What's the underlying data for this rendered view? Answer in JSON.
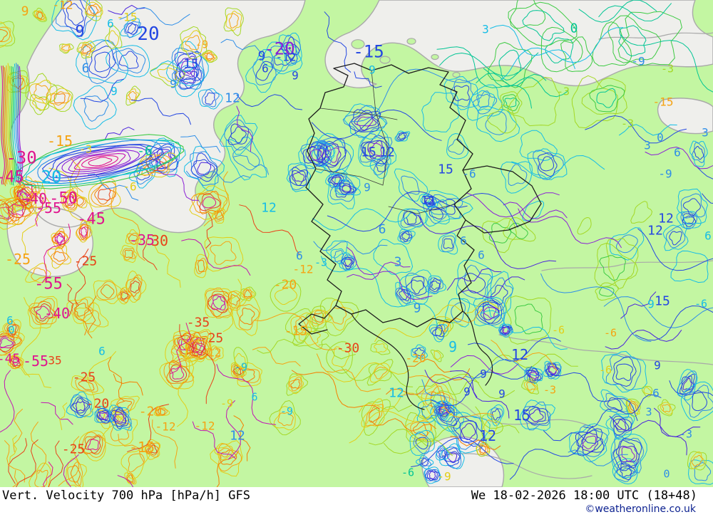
{
  "footer": {
    "title": "Vert. Velocity 700 hPa [hPa/h] GFS",
    "datetime": "We 18-02-2026 18:00 UTC (18+48)",
    "copyright": "©weatheronline.co.uk"
  },
  "map": {
    "colors": {
      "land": "#c3f6a2",
      "sea": "#efefec",
      "coastline": "#a9a9a9",
      "country_border": "#1c1c1c",
      "state_border": "#3a3a3a",
      "copyright_text": "#0a1f8f",
      "footer_bg": "#ffffff",
      "footer_text": "#000000"
    },
    "palette": {
      "B": "#2447e2",
      "A": "#2e8ee8",
      "C": "#16bde6",
      "T": "#02c594",
      "G": "#3ecb44",
      "Y": "#a4d825",
      "L": "#e2ce17",
      "O": "#f5a312",
      "D": "#f57f00",
      "R": "#e84318",
      "M": "#e0148e",
      "P": "#8b1fd6",
      "I": "#4b23dc",
      "M2": "#c214b4"
    },
    "contour_labels": [
      [
        "9",
        35,
        15,
        "O",
        18
      ],
      [
        "-12",
        88,
        7,
        "O",
        16
      ],
      [
        "-15",
        178,
        24,
        "L",
        16
      ],
      [
        "6",
        155,
        33,
        "C",
        16
      ],
      [
        "9",
        112,
        44,
        "B",
        22
      ],
      [
        "20",
        208,
        47,
        "B",
        26
      ],
      [
        "-9",
        283,
        62,
        "O",
        15
      ],
      [
        "-20",
        392,
        68,
        "P",
        24
      ],
      [
        "9",
        367,
        78,
        "B",
        18
      ],
      [
        "-12",
        401,
        80,
        "B",
        16
      ],
      [
        "-15",
        517,
        72,
        "B",
        24
      ],
      [
        "9",
        522,
        98,
        "C",
        16
      ],
      [
        "15",
        268,
        89,
        "B",
        18
      ],
      [
        "6",
        372,
        96,
        "B",
        16
      ],
      [
        "9",
        414,
        106,
        "B",
        16
      ],
      [
        "12",
        326,
        137,
        "A",
        18
      ],
      [
        "9",
        243,
        118,
        "A",
        16
      ],
      [
        "6",
        120,
        95,
        "A",
        18
      ],
      [
        "9",
        160,
        128,
        "C",
        16
      ],
      [
        "12",
        377,
        291,
        "C",
        18
      ],
      [
        "12",
        450,
        204,
        "A",
        16
      ],
      [
        "15",
        517,
        213,
        "B",
        18
      ],
      [
        "12",
        543,
        213,
        "B",
        18
      ],
      [
        "15",
        625,
        237,
        "B",
        18
      ],
      [
        "-6",
        658,
        244,
        "A",
        16
      ],
      [
        "3",
        681,
        41,
        "C",
        16
      ],
      [
        "0",
        805,
        39,
        "T",
        18
      ],
      [
        "-9",
        895,
        86,
        "A",
        16
      ],
      [
        "-3",
        936,
        96,
        "Y",
        15
      ],
      [
        "-15",
        930,
        143,
        "O",
        16
      ],
      [
        "-3",
        790,
        128,
        "Y",
        15
      ],
      [
        "-3",
        880,
        173,
        "Y",
        15
      ],
      [
        "3",
        989,
        186,
        "A",
        16
      ],
      [
        "0",
        926,
        193,
        "A",
        16
      ],
      [
        "3",
        908,
        204,
        "A",
        16
      ],
      [
        "6",
        950,
        214,
        "A",
        16
      ],
      [
        "-9",
        933,
        244,
        "A",
        16
      ],
      [
        "9",
        515,
        263,
        "A",
        16
      ],
      [
        "12",
        600,
        281,
        "B",
        16
      ],
      [
        "6",
        536,
        321,
        "A",
        18
      ],
      [
        "3",
        558,
        367,
        "A",
        18
      ],
      [
        "6",
        420,
        359,
        "A",
        16
      ],
      [
        "-3",
        450,
        368,
        "C",
        15
      ],
      [
        "6",
        650,
        338,
        "A",
        16
      ],
      [
        "6",
        675,
        358,
        "A",
        16
      ],
      [
        "9",
        585,
        432,
        "A",
        18
      ],
      [
        "12",
        934,
        306,
        "B",
        18
      ],
      [
        "12",
        919,
        323,
        "B",
        18
      ],
      [
        "6",
        993,
        331,
        "C",
        16
      ],
      [
        "15",
        929,
        422,
        "B",
        18
      ],
      [
        "9",
        913,
        427,
        "C",
        16
      ],
      [
        "-6",
        983,
        426,
        "C",
        15
      ],
      [
        "-6",
        203,
        211,
        "T",
        18
      ],
      [
        "-15",
        84,
        198,
        "O",
        20
      ],
      [
        "20",
        72,
        248,
        "C",
        24
      ],
      [
        "-30",
        30,
        221,
        "M",
        24
      ],
      [
        "-3",
        120,
        209,
        "L",
        15
      ],
      [
        "-6",
        182,
        262,
        "L",
        16
      ],
      [
        "-45",
        14,
        248,
        "M",
        22
      ],
      [
        "-40",
        48,
        279,
        "M",
        20
      ],
      [
        "-50",
        89,
        278,
        "M",
        22
      ],
      [
        "-55",
        68,
        292,
        "M",
        20
      ],
      [
        "-45",
        128,
        307,
        "M",
        22
      ],
      [
        "-35",
        199,
        337,
        "M",
        20
      ],
      [
        "30",
        224,
        338,
        "R",
        20
      ],
      [
        "-25",
        25,
        364,
        "O",
        20
      ],
      [
        "-25",
        120,
        366,
        "R",
        18
      ],
      [
        "-55",
        68,
        398,
        "M",
        22
      ],
      [
        "-40",
        80,
        440,
        "M",
        20
      ],
      [
        "-55",
        50,
        507,
        "M",
        20
      ],
      [
        "-45",
        12,
        503,
        "M",
        18
      ],
      [
        "35",
        77,
        506,
        "R",
        16
      ],
      [
        "6",
        14,
        450,
        "C",
        16
      ],
      [
        "0",
        16,
        463,
        "C",
        15
      ],
      [
        "-35",
        278,
        452,
        "R",
        18
      ],
      [
        "-25",
        297,
        474,
        "R",
        18
      ],
      [
        "-12",
        296,
        495,
        "O",
        16
      ],
      [
        "-25",
        118,
        529,
        "R",
        18
      ],
      [
        "-20",
        137,
        566,
        "R",
        18
      ],
      [
        "-20",
        211,
        577,
        "O",
        18
      ],
      [
        "-25",
        103,
        630,
        "R",
        18
      ],
      [
        "-15",
        199,
        628,
        "O",
        20
      ],
      [
        "-12",
        232,
        599,
        "O",
        16
      ],
      [
        "-12",
        287,
        598,
        "O",
        16
      ],
      [
        "6",
        143,
        493,
        "C",
        16
      ],
      [
        "-9",
        318,
        566,
        "L",
        15
      ],
      [
        "12",
        333,
        611,
        "A",
        18
      ],
      [
        "6",
        357,
        557,
        "C",
        15
      ],
      [
        "-9",
        402,
        577,
        "C",
        15
      ],
      [
        "-9",
        338,
        515,
        "C",
        15
      ],
      [
        "-15",
        415,
        464,
        "O",
        18
      ],
      [
        "-30",
        488,
        488,
        "R",
        18
      ],
      [
        "-12",
        425,
        378,
        "O",
        16
      ],
      [
        "-20",
        400,
        399,
        "O",
        18
      ],
      [
        "-20",
        583,
        503,
        "O",
        16
      ],
      [
        "9",
        635,
        487,
        "C",
        20
      ],
      [
        "12",
        729,
        498,
        "B",
        20
      ],
      [
        "9",
        678,
        525,
        "B",
        16
      ],
      [
        "9",
        655,
        550,
        "B",
        16
      ],
      [
        "9",
        704,
        553,
        "B",
        16
      ],
      [
        "15",
        732,
        583,
        "B",
        20
      ],
      [
        "12",
        684,
        612,
        "B",
        20
      ],
      [
        "12",
        556,
        551,
        "C",
        18
      ],
      [
        "-6",
        849,
        519,
        "L",
        15
      ],
      [
        "-3",
        771,
        547,
        "O",
        15
      ],
      [
        "9",
        922,
        513,
        "B",
        16
      ],
      [
        "6",
        920,
        552,
        "A",
        16
      ],
      [
        "3",
        910,
        578,
        "A",
        15
      ],
      [
        "-3",
        962,
        609,
        "A",
        15
      ],
      [
        "-9",
        623,
        669,
        "L",
        16
      ],
      [
        "-6",
        572,
        663,
        "T",
        15
      ],
      [
        "0",
        935,
        665,
        "A",
        15
      ],
      [
        "-6",
        783,
        463,
        "L",
        15
      ],
      [
        "-6",
        856,
        467,
        "O",
        15
      ]
    ]
  }
}
